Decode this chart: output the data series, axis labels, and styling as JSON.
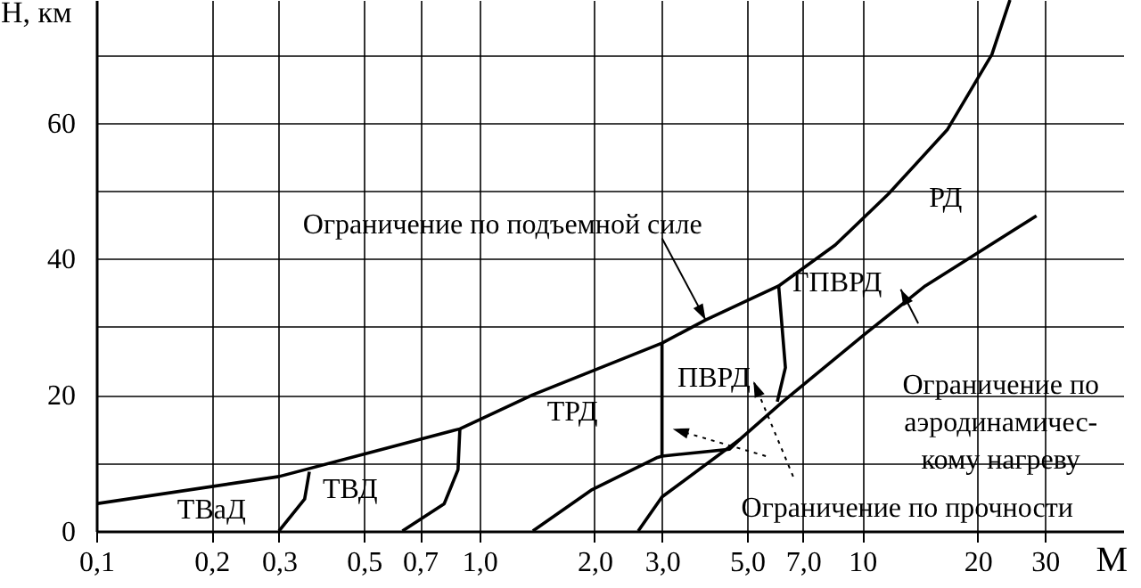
{
  "chart_data": {
    "type": "line",
    "xlabel": "М",
    "ylabel": "H, км",
    "log": "x",
    "grid": true,
    "marker": "none",
    "line_style": "solid",
    "xlim": [
      0.1,
      48
    ],
    "ylim": [
      0,
      78
    ],
    "xticks": [
      {
        "value": 0.1,
        "label": "0,1"
      },
      {
        "value": 0.2,
        "label": "0,2"
      },
      {
        "value": 0.3,
        "label": "0,3"
      },
      {
        "value": 0.5,
        "label": "0,5"
      },
      {
        "value": 0.7,
        "label": "0,7"
      },
      {
        "value": 1,
        "label": "1,0"
      },
      {
        "value": 2,
        "label": "2,0"
      },
      {
        "value": 3,
        "label": "3,0"
      },
      {
        "value": 5,
        "label": "5,0"
      },
      {
        "value": 7,
        "label": "7,0"
      },
      10,
      20,
      30
    ],
    "yticks": [
      0,
      {
        "value": 10,
        "label": null
      },
      20,
      {
        "value": 30,
        "label": null
      },
      40,
      {
        "value": 50,
        "label": null
      },
      60,
      {
        "value": 70,
        "label": null
      }
    ],
    "series": [
      {
        "color": "#000000",
        "x": [
          0.1,
          0.3,
          0.89,
          1.38,
          3.0,
          3.9,
          6.05,
          8.5,
          11.7,
          16.7,
          21.8,
          24.3
        ],
        "values": [
          4,
          8,
          15,
          20,
          27.6,
          31,
          36,
          42,
          49.5,
          59,
          70,
          78
        ]
      },
      {
        "color": "#000000",
        "x": [
          2.6,
          3.0,
          4.8,
          6.2,
          10.2,
          14.6,
          28.5
        ],
        "values": [
          0,
          5,
          13.5,
          19,
          29,
          36,
          46.3
        ]
      },
      {
        "color": "#000000",
        "x": [
          1.38,
          1.96,
          2.92,
          3.0,
          4.5,
          4.8
        ],
        "values": [
          0,
          6,
          10.8,
          11,
          12,
          13.5
        ]
      },
      {
        "color": "#000000",
        "x": [
          3.0,
          3.0
        ],
        "values": [
          11,
          27.6
        ]
      },
      {
        "color": "#000000",
        "x": [
          6.05,
          6.3,
          6.0
        ],
        "values": [
          36,
          24,
          19
        ]
      },
      {
        "color": "#000000",
        "x": [
          0.3,
          0.35,
          0.36
        ],
        "values": [
          0,
          4.7,
          8.7
        ]
      },
      {
        "color": "#000000",
        "x": [
          0.63,
          0.81,
          0.88,
          0.89
        ],
        "values": [
          0,
          4,
          9,
          15
        ]
      }
    ],
    "annotations": [
      {
        "text": "Ограничение по подъемной силе",
        "x": 3.9,
        "y": 31
      },
      "РД",
      "ГПВРД",
      "ПВРД",
      "ТРД",
      "ТВД",
      "ТВаД",
      "Ограничение по\nаэродинамичес-\nкому нагреву",
      "Ограничение по прочности"
    ]
  }
}
